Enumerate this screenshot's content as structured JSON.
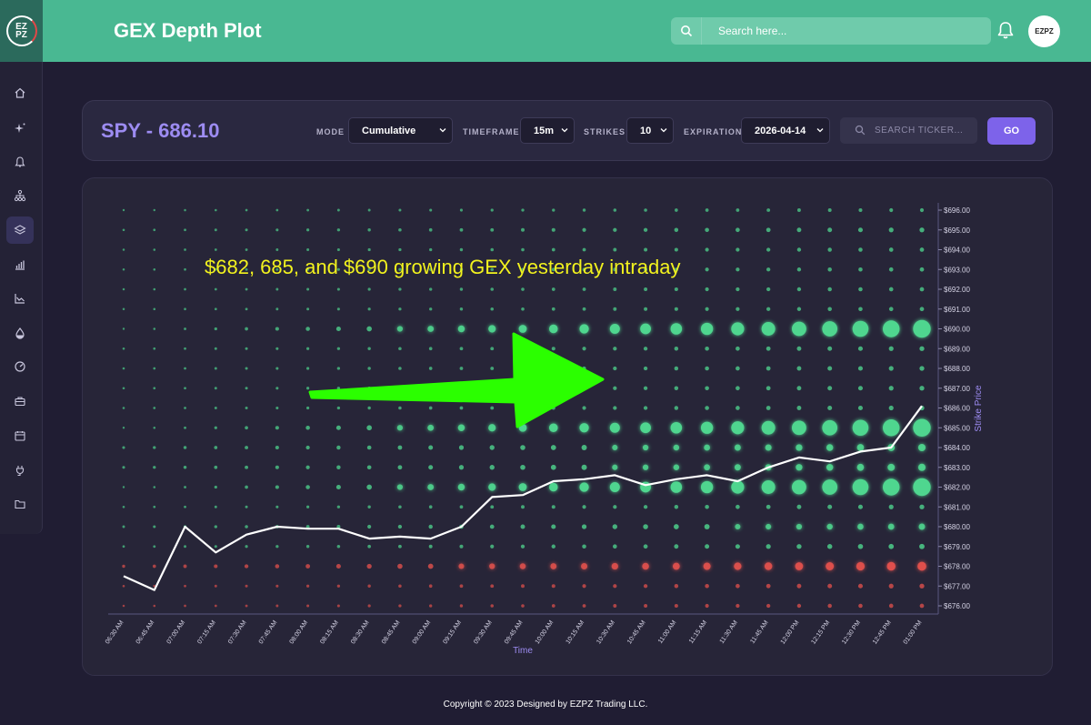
{
  "header": {
    "title": "GEX Depth Plot",
    "search_placeholder": "Search here...",
    "avatar_text": "EZPZ"
  },
  "logo": {
    "text_top": "EZ",
    "text_bottom": "PZ"
  },
  "sidebar": {
    "items": [
      {
        "icon": "home-icon"
      },
      {
        "icon": "sparkle-icon"
      },
      {
        "icon": "bell-icon"
      },
      {
        "icon": "hierarchy-icon"
      },
      {
        "icon": "layers-icon",
        "active": true
      },
      {
        "icon": "bar-chart-icon"
      },
      {
        "icon": "line-chart-icon"
      },
      {
        "icon": "drop-icon"
      },
      {
        "icon": "gauge-icon"
      },
      {
        "icon": "briefcase-icon"
      },
      {
        "icon": "calendar-icon"
      },
      {
        "icon": "plug-icon"
      },
      {
        "icon": "folder-icon"
      }
    ]
  },
  "ticker": {
    "title": "SPY - 686.10",
    "mode_label": "MODE",
    "mode_value": "Cumulative",
    "timeframe_label": "TIMEFRAME",
    "timeframe_value": "15m",
    "strikes_label": "STRIKES",
    "strikes_value": "10",
    "expiration_label": "EXPIRATION",
    "expiration_value": "2026-04-14",
    "search_placeholder": "SEARCH TICKER...",
    "go_label": "GO"
  },
  "annotation": "$682, 685, and $690 growing GEX yesterday intraday",
  "colors": {
    "accent": "#49b892",
    "brand": "#7d63ea",
    "positive": "#4fd68f",
    "negative": "#e04848",
    "arrow": "#2bff00",
    "annotation": "#f2f21e"
  },
  "chart_data": {
    "type": "scatter",
    "xlabel": "Time",
    "ylabel": "Strike Price",
    "x": [
      "06:30 AM",
      "06:45 AM",
      "07:00 AM",
      "07:15 AM",
      "07:30 AM",
      "07:45 AM",
      "08:00 AM",
      "08:15 AM",
      "08:30 AM",
      "08:45 AM",
      "09:00 AM",
      "09:15 AM",
      "09:30 AM",
      "09:45 AM",
      "10:00 AM",
      "10:15 AM",
      "10:30 AM",
      "10:45 AM",
      "11:00 AM",
      "11:15 AM",
      "11:30 AM",
      "11:45 AM",
      "12:00 PM",
      "12:15 PM",
      "12:30 PM",
      "12:45 PM",
      "01:00 PM"
    ],
    "strikes": [
      "$696.00",
      "$695.00",
      "$694.00",
      "$693.00",
      "$692.00",
      "$691.00",
      "$690.00",
      "$689.00",
      "$688.00",
      "$687.00",
      "$686.00",
      "$685.00",
      "$684.00",
      "$683.00",
      "$682.00",
      "$681.00",
      "$680.00",
      "$679.00",
      "$678.00",
      "$677.00",
      "$676.00"
    ],
    "price_line": [
      677.5,
      676.8,
      680.0,
      678.7,
      679.6,
      680.0,
      679.9,
      679.9,
      679.4,
      679.5,
      679.4,
      680.0,
      681.5,
      681.6,
      682.3,
      682.4,
      682.6,
      682.1,
      682.4,
      682.6,
      682.3,
      683.0,
      683.5,
      683.3,
      683.8,
      684.0,
      686.1
    ],
    "ylim": [
      676,
      696
    ],
    "gex_scale": {
      "690": 1.0,
      "685": 1.0,
      "682": 1.0,
      "684": 0.55,
      "683": 0.55,
      "680": 0.45,
      "679": 0.35,
      "678": -0.7,
      "677": -0.3,
      "676": -0.25,
      "689": 0.3,
      "688": 0.3,
      "687": 0.3,
      "686": 0.3,
      "681": 0.3,
      "691": 0.25,
      "692": 0.25,
      "693": 0.25,
      "694": 0.25,
      "695": 0.3,
      "696": 0.2
    }
  },
  "footer": "Copyright © 2023 Designed by EZPZ Trading LLC."
}
